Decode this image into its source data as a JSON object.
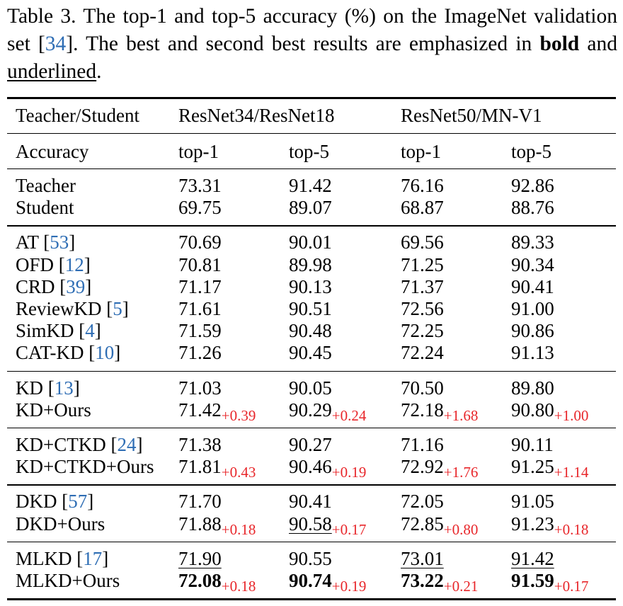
{
  "caption": {
    "prefix": "Table 3. The top-1 and top-5 accuracy (%) on the ImageNet validation set [",
    "ref": "34",
    "middle": "]. The best and second best results are emphasized in ",
    "bold_word": "bold",
    "and_word": " and ",
    "underline_word": "underlined",
    "end": "."
  },
  "headers": {
    "row1": [
      "Teacher/Student",
      "ResNet34/ResNet18",
      "ResNet50/MN-V1"
    ],
    "row2": [
      "Accuracy",
      "top-1",
      "top-5",
      "top-1",
      "top-5"
    ]
  },
  "groups": [
    {
      "rows": [
        {
          "name": "Teacher",
          "values": [
            "73.31",
            "91.42",
            "76.16",
            "92.86"
          ]
        },
        {
          "name": "Student",
          "values": [
            "69.75",
            "89.07",
            "68.87",
            "88.76"
          ]
        }
      ]
    },
    {
      "rows": [
        {
          "name": "AT ",
          "ref": "53",
          "values": [
            "70.69",
            "90.01",
            "69.56",
            "89.33"
          ]
        },
        {
          "name": "OFD ",
          "ref": "12",
          "values": [
            "70.81",
            "89.98",
            "71.25",
            "90.34"
          ]
        },
        {
          "name": "CRD ",
          "ref": "39",
          "values": [
            "71.17",
            "90.13",
            "71.37",
            "90.41"
          ]
        },
        {
          "name": "ReviewKD ",
          "ref": "5",
          "values": [
            "71.61",
            "90.51",
            "72.56",
            "91.00"
          ]
        },
        {
          "name": "SimKD ",
          "ref": "4",
          "values": [
            "71.59",
            "90.48",
            "72.25",
            "90.86"
          ]
        },
        {
          "name": "CAT-KD ",
          "ref": "10",
          "values": [
            "71.26",
            "90.45",
            "72.24",
            "91.13"
          ]
        }
      ]
    },
    {
      "rows": [
        {
          "name": "KD ",
          "ref": "13",
          "values": [
            "71.03",
            "90.05",
            "70.50",
            "89.80"
          ]
        },
        {
          "name": "KD+Ours",
          "values": [
            "71.42",
            "90.29",
            "72.18",
            "90.80"
          ],
          "deltas": [
            "+0.39",
            "+0.24",
            "+1.68",
            "+1.00"
          ]
        }
      ]
    },
    {
      "rows": [
        {
          "name": "KD+CTKD ",
          "ref": "24",
          "values": [
            "71.38",
            "90.27",
            "71.16",
            "90.11"
          ]
        },
        {
          "name": "KD+CTKD+Ours",
          "values": [
            "71.81",
            "90.46",
            "72.92",
            "91.25"
          ],
          "deltas": [
            "+0.43",
            "+0.19",
            "+1.76",
            "+1.14"
          ]
        }
      ]
    },
    {
      "rows": [
        {
          "name": "DKD ",
          "ref": "57",
          "values": [
            "71.70",
            "90.41",
            "72.05",
            "91.05"
          ]
        },
        {
          "name": "DKD+Ours",
          "values": [
            "71.88",
            "90.58",
            "72.85",
            "91.23"
          ],
          "deltas": [
            "+0.18",
            "+0.17",
            "+0.80",
            "+0.18"
          ],
          "underline": [
            false,
            true,
            false,
            false
          ]
        }
      ]
    },
    {
      "rows": [
        {
          "name": "MLKD ",
          "ref": "17",
          "values": [
            "71.90",
            "90.55",
            "73.01",
            "91.42"
          ],
          "underline": [
            true,
            false,
            true,
            true
          ]
        },
        {
          "name": "MLKD+Ours",
          "values": [
            "72.08",
            "90.74",
            "73.22",
            "91.59"
          ],
          "deltas": [
            "+0.18",
            "+0.19",
            "+0.21",
            "+0.17"
          ],
          "bold": [
            true,
            true,
            true,
            true
          ]
        }
      ]
    }
  ]
}
